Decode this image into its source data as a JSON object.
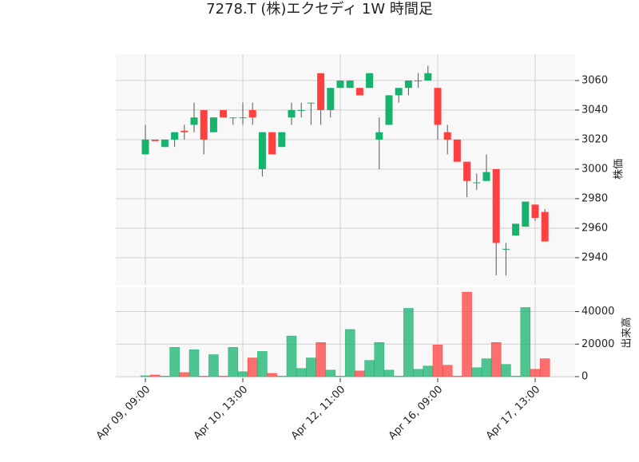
{
  "chart_data": {
    "type": "candlestick",
    "title": "7278.T (株)エクセディ 1W 時間足",
    "ylabel": "株価",
    "categories": [
      "Apr 09, 09:00",
      null,
      null,
      null,
      null,
      null,
      null,
      null,
      null,
      null,
      "Apr 10, 13:00",
      null,
      null,
      null,
      null,
      null,
      null,
      null,
      null,
      null,
      "Apr 12, 11:00",
      null,
      null,
      null,
      null,
      null,
      null,
      null,
      null,
      null,
      "Apr 16, 09:00",
      null,
      null,
      null,
      null,
      null,
      null,
      null,
      null,
      null,
      "Apr 17, 13:00",
      null
    ],
    "open": [
      3010,
      3020,
      3015,
      3020,
      3026,
      3030,
      3040,
      3025,
      3040,
      3035,
      3035,
      3040,
      3000,
      3025,
      3015,
      3035,
      3040,
      3045,
      3065,
      3040,
      3055,
      3055,
      3055,
      3055,
      3020,
      3030,
      3050,
      3055,
      3060,
      3060,
      3055,
      3025,
      3020,
      3005,
      2991,
      2992,
      3000,
      2946,
      2955,
      2961,
      2976,
      2971
    ],
    "high": [
      3030,
      3020,
      3020,
      3025,
      3030,
      3045,
      3040,
      3035,
      3040,
      3035,
      3045,
      3045,
      3025,
      3025,
      3025,
      3045,
      3045,
      3045,
      3065,
      3055,
      3060,
      3060,
      3055,
      3065,
      3035,
      3050,
      3055,
      3060,
      3065,
      3070,
      3055,
      3030,
      3020,
      3005,
      2997,
      3010,
      3000,
      2950,
      2963,
      2978,
      2976,
      2973
    ],
    "low": [
      3010,
      3019,
      3015,
      3015,
      3020,
      3025,
      3010,
      3025,
      3035,
      3030,
      3030,
      3030,
      2995,
      3010,
      3015,
      3030,
      3035,
      3030,
      3030,
      3035,
      3055,
      3055,
      3050,
      3055,
      3000,
      3030,
      3045,
      3050,
      3055,
      3060,
      3020,
      3010,
      3005,
      2981,
      2986,
      2992,
      2928,
      2928,
      2955,
      2961,
      2965,
      2951
    ],
    "close": [
      3020,
      3019,
      3020,
      3025,
      3025,
      3035,
      3020,
      3035,
      3035,
      3035,
      3035,
      3035,
      3025,
      3010,
      3025,
      3040,
      3040,
      3045,
      3040,
      3055,
      3060,
      3060,
      3050,
      3065,
      3025,
      3050,
      3055,
      3060,
      3060,
      3065,
      3030,
      3020,
      3005,
      2992,
      2991,
      2998,
      2950,
      2946,
      2963,
      2978,
      2967,
      2951
    ],
    "up_color": "#16b36e",
    "down_color": "#ff4040",
    "ylim": [
      2921.6,
      3077.8
    ],
    "yticks": [
      2940,
      2960,
      2980,
      3000,
      3020,
      3040,
      3060
    ],
    "grid": true,
    "volume": {
      "ylabel": "出来高",
      "values": [
        500,
        1000,
        300,
        18000,
        2500,
        16500,
        300,
        13500,
        300,
        18000,
        3000,
        11500,
        15500,
        2000,
        300,
        25000,
        5000,
        11500,
        21000,
        4000,
        300,
        29000,
        3500,
        10000,
        21000,
        4000,
        300,
        42000,
        4500,
        6500,
        19500,
        7000,
        300,
        52000,
        5500,
        11000,
        21000,
        7500,
        300,
        42500,
        4500,
        11000
      ],
      "ylim": [
        0,
        55000
      ],
      "yticks": [
        0,
        20000,
        40000
      ]
    }
  }
}
